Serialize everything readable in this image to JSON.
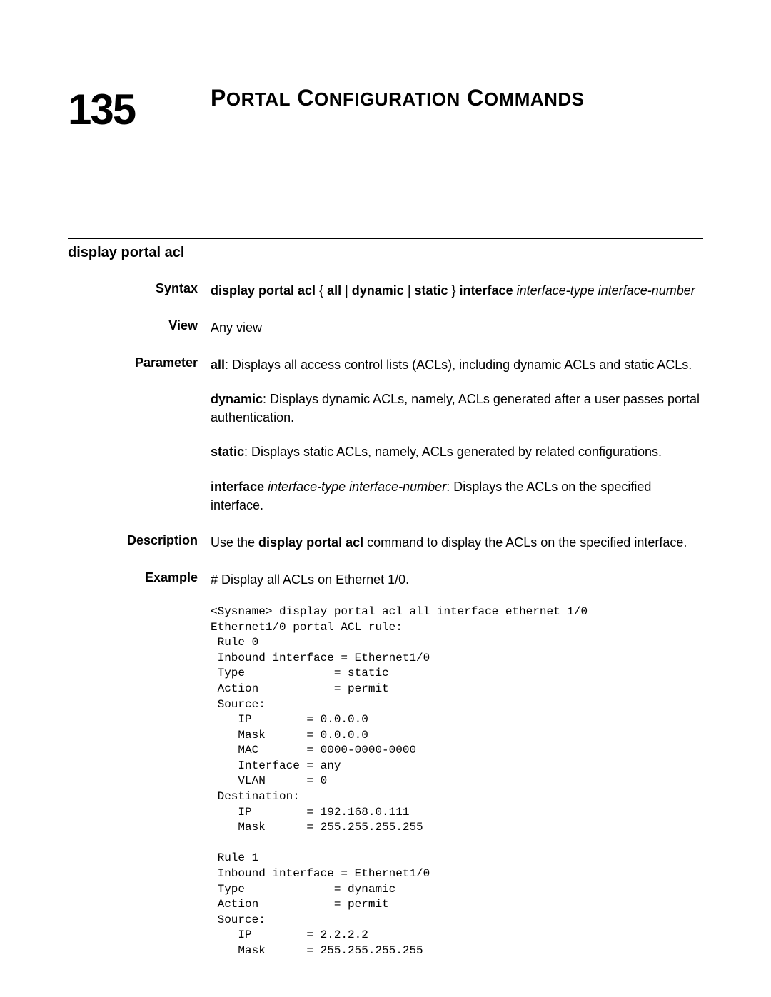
{
  "chapter": {
    "number": "135",
    "title_html": "P<span style=\"font-size:26px\">ORTAL</span> C<span style=\"font-size:26px\">ONFIGURATION</span> C<span style=\"font-size:26px\">OMMANDS</span>"
  },
  "command": {
    "name": "display portal acl"
  },
  "labels": {
    "syntax": "Syntax",
    "view": "View",
    "parameter": "Parameter",
    "description": "Description",
    "example": "Example"
  },
  "syntax": {
    "html": "<span class=\"b\">display portal acl</span> { <span class=\"b\">all</span> | <span class=\"b\">dynamic</span> | <span class=\"b\">static</span> } <span class=\"b\">interface</span> <span class=\"i\">interface-type interface-number</span>"
  },
  "view": {
    "text": "Any view"
  },
  "parameter": {
    "p1_html": "<span class=\"b\">all</span>: Displays all access control lists (ACLs), including dynamic ACLs and static ACLs.",
    "p2_html": "<span class=\"b\">dynamic</span>: Displays dynamic ACLs, namely, ACLs generated after a user passes portal authentication.",
    "p3_html": "<span class=\"b\">static</span>: Displays static ACLs, namely, ACLs generated by related configurations.",
    "p4_html": "<span class=\"b\">interface</span> <span class=\"i\">interface-type interface-number</span>: Displays the ACLs on the specified interface."
  },
  "description": {
    "html": "Use the <span class=\"b\">display portal acl</span> command to display the ACLs on the specified interface."
  },
  "example": {
    "intro": "# Display all ACLs on Ethernet 1/0.",
    "code": "<Sysname> display portal acl all interface ethernet 1/0\nEthernet1/0 portal ACL rule:\n Rule 0\n Inbound interface = Ethernet1/0\n Type             = static\n Action           = permit\n Source:\n    IP        = 0.0.0.0\n    Mask      = 0.0.0.0\n    MAC       = 0000-0000-0000\n    Interface = any\n    VLAN      = 0\n Destination:\n    IP        = 192.168.0.111\n    Mask      = 255.255.255.255\n\n Rule 1\n Inbound interface = Ethernet1/0\n Type             = dynamic\n Action           = permit\n Source:\n    IP        = 2.2.2.2\n    Mask      = 255.255.255.255"
  },
  "style": {
    "text_color": "#000000",
    "background": "#ffffff",
    "body_fontsize": 18,
    "label_fontsize": 18,
    "label_weight": 700,
    "chapter_number_fontsize": 60,
    "chapter_title_fontsize": 32,
    "code_fontsize": 16,
    "code_family": "Courier New"
  }
}
